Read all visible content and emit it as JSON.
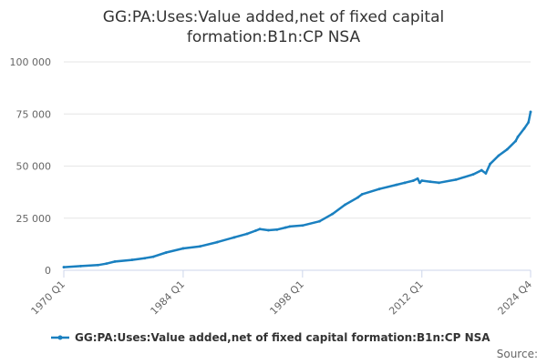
{
  "chart_data": {
    "type": "line",
    "title_lines": [
      "GG:PA:Uses:Value added,net of fixed capital",
      "formation:B1n:CP NSA"
    ],
    "xlabel": "",
    "ylabel": "",
    "x_tick_labels": [
      "1970 Q1",
      "1984 Q1",
      "1998 Q1",
      "2012 Q1",
      "2024 Q4"
    ],
    "y_tick_labels": [
      "0",
      "25 000",
      "50 000",
      "75 000",
      "100 000"
    ],
    "ylim": [
      0,
      100000
    ],
    "xlim": [
      1970.0,
      2024.75
    ],
    "grid": "horizontal",
    "legend_placement": "bottom",
    "series": [
      {
        "name": "GG:PA:Uses:Value added,net of fixed capital formation:B1n:CP NSA",
        "color": "#1a80c0",
        "x": [
          1970.0,
          1972.0,
          1974.0,
          1975.0,
          1976.0,
          1978.0,
          1979.5,
          1980.5,
          1982.0,
          1984.0,
          1986.0,
          1988.0,
          1990.0,
          1991.5,
          1992.5,
          1993.0,
          1994.0,
          1995.0,
          1996.0,
          1996.5,
          1998.0,
          2000.0,
          2001.5,
          2003.0,
          2004.5,
          2005.0,
          2007.0,
          2009.0,
          2010.0,
          2011.0,
          2011.5,
          2011.75,
          2012.0,
          2013.0,
          2014.0,
          2016.0,
          2018.0,
          2019.0,
          2019.5,
          2020.0,
          2021.0,
          2022.0,
          2023.0,
          2023.25,
          2024.0,
          2024.5,
          2024.75
        ],
        "values": [
          1500,
          2000,
          2500,
          3200,
          4200,
          5000,
          5800,
          6500,
          8500,
          10500,
          11500,
          13500,
          15800,
          17500,
          19000,
          19800,
          19200,
          19500,
          20500,
          21000,
          21500,
          23500,
          27000,
          31500,
          35000,
          36500,
          39000,
          41000,
          42000,
          43000,
          44000,
          42000,
          43000,
          42500,
          42000,
          43500,
          46000,
          48000,
          46500,
          51000,
          55000,
          58000,
          62000,
          64000,
          68000,
          71000,
          76000
        ]
      }
    ]
  },
  "footer": {
    "source_label": "Source:"
  }
}
